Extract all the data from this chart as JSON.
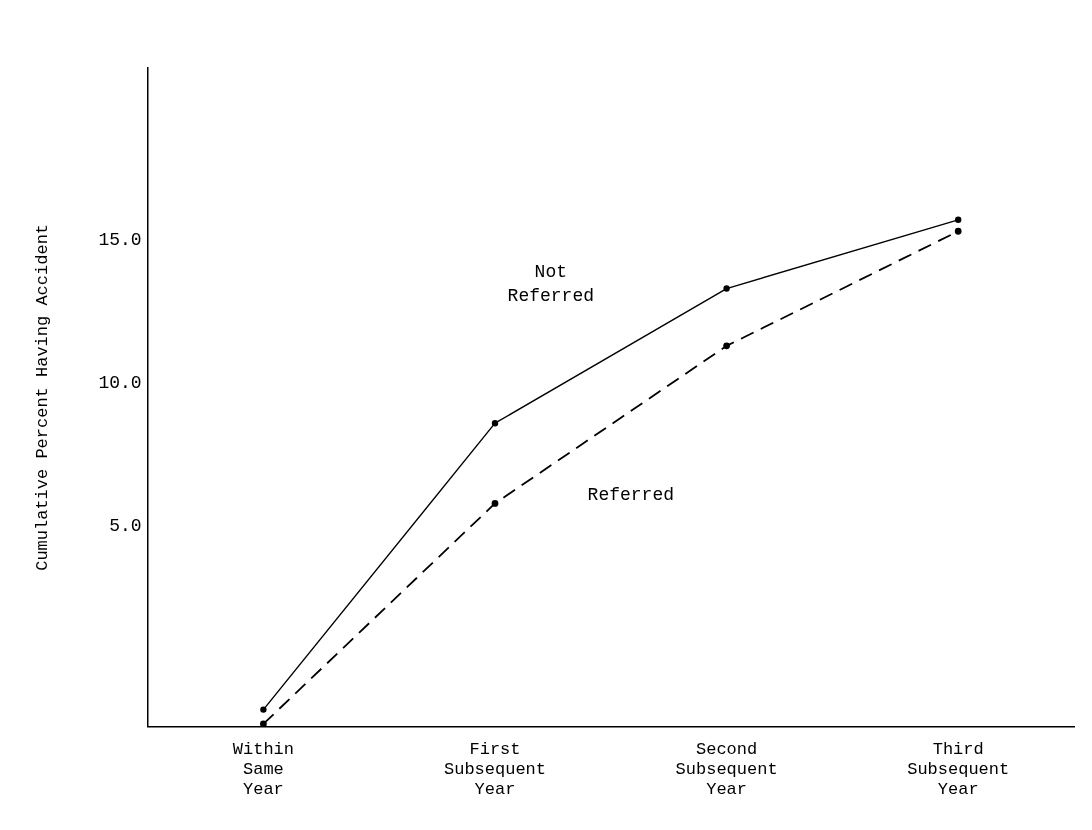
{
  "chart_data": {
    "type": "line",
    "ylabel": "Cumulative Percent Having Accident",
    "categories": [
      "Within Same Year",
      "First Subsequent Year",
      "Second Subsequent Year",
      "Third Subsequent Year"
    ],
    "series": [
      {
        "name": "Not Referred",
        "color": "#000000",
        "line_style": "solid",
        "values": [
          -1.4,
          8.6,
          13.3,
          15.7
        ]
      },
      {
        "name": "Referred",
        "color": "#000000",
        "line_style": "dashed",
        "values": [
          -1.9,
          5.8,
          11.3,
          15.3
        ]
      }
    ],
    "ylim": [
      -2,
      21
    ],
    "yticks": [
      {
        "value": 5,
        "label": "5.0"
      },
      {
        "value": 10,
        "label": "10.0"
      },
      {
        "value": 15,
        "label": "15.0"
      }
    ],
    "grid": false,
    "legend": false,
    "marker": "circle"
  }
}
